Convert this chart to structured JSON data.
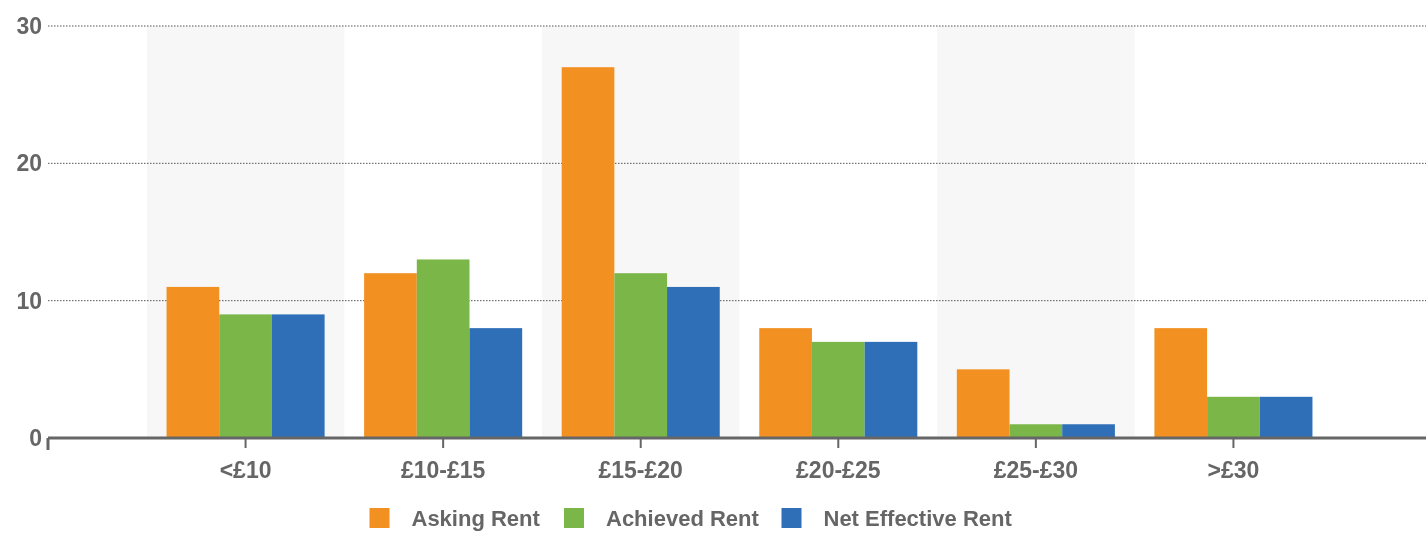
{
  "chart_data": {
    "type": "bar",
    "categories": [
      "<£10",
      "£10-£15",
      "£15-£20",
      "£20-£25",
      "£25-£30",
      ">£30"
    ],
    "series": [
      {
        "name": "Asking Rent",
        "color": "#f39022",
        "values": [
          11,
          12,
          27,
          8,
          5,
          8
        ]
      },
      {
        "name": "Achieved Rent",
        "color": "#7ab648",
        "values": [
          9,
          13,
          12,
          7,
          1,
          3
        ]
      },
      {
        "name": "Net Effective Rent",
        "color": "#2e6fb7",
        "values": [
          9,
          8,
          11,
          7,
          1,
          3
        ]
      }
    ],
    "ylim": [
      0,
      30
    ],
    "yticks": [
      0,
      10,
      20,
      30
    ],
    "grid": "y",
    "legend": "bottom"
  }
}
